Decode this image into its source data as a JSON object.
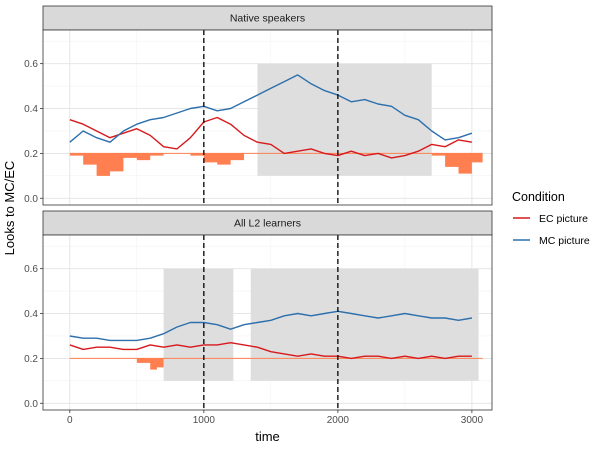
{
  "chart_data": {
    "type": "line",
    "xlabel": "time",
    "ylabel": "Looks to MC/EC",
    "xlim": [
      -200,
      3150
    ],
    "ylim": [
      -0.03,
      0.75
    ],
    "x_ticks": [
      0,
      1000,
      2000,
      3000
    ],
    "x_tick_labels": [
      "0",
      "1000",
      "2000",
      "3000"
    ],
    "y_ticks": [
      0.0,
      0.2,
      0.4,
      0.6
    ],
    "y_tick_labels": [
      "0.0",
      "0.2",
      "0.4",
      "0.6"
    ],
    "grid": true,
    "legend": {
      "title": "Condition",
      "position": "right",
      "items": [
        {
          "label": "EC picture",
          "color": "#d7191c"
        },
        {
          "label": "MC picture",
          "color": "#2c6fad"
        }
      ]
    },
    "colors": {
      "ec": "#d7191c",
      "mc": "#2c6fad",
      "baseline": "#ff7f50",
      "diff_fill": "#ff7f50",
      "cluster_fill": "#dedede",
      "strip_fill": "#d9d9d9",
      "vline": "#000000"
    },
    "baseline_y": 0.2,
    "vlines": [
      1000,
      2000
    ],
    "panels": [
      {
        "title": "Native speakers",
        "clusters": [
          {
            "x0": 1400,
            "x1": 2700,
            "y0": 0.1,
            "y1": 0.6
          }
        ],
        "series": [
          {
            "name": "EC picture",
            "x": [
              0,
              100,
              200,
              300,
              400,
              500,
              600,
              700,
              800,
              900,
              1000,
              1100,
              1200,
              1300,
              1400,
              1500,
              1600,
              1700,
              1800,
              1900,
              2000,
              2100,
              2200,
              2300,
              2400,
              2500,
              2600,
              2700,
              2800,
              2900,
              3000
            ],
            "values": [
              0.35,
              0.33,
              0.3,
              0.27,
              0.29,
              0.31,
              0.28,
              0.23,
              0.22,
              0.27,
              0.34,
              0.36,
              0.33,
              0.28,
              0.25,
              0.24,
              0.2,
              0.21,
              0.22,
              0.2,
              0.19,
              0.21,
              0.19,
              0.2,
              0.18,
              0.19,
              0.21,
              0.24,
              0.23,
              0.26,
              0.25
            ]
          },
          {
            "name": "MC picture",
            "x": [
              0,
              100,
              200,
              300,
              400,
              500,
              600,
              700,
              800,
              900,
              1000,
              1100,
              1200,
              1300,
              1400,
              1500,
              1600,
              1700,
              1800,
              1900,
              2000,
              2100,
              2200,
              2300,
              2400,
              2500,
              2600,
              2700,
              2800,
              2900,
              3000
            ],
            "values": [
              0.25,
              0.3,
              0.27,
              0.25,
              0.3,
              0.33,
              0.35,
              0.36,
              0.38,
              0.4,
              0.41,
              0.39,
              0.4,
              0.43,
              0.46,
              0.49,
              0.52,
              0.55,
              0.51,
              0.48,
              0.46,
              0.43,
              0.44,
              0.42,
              0.41,
              0.37,
              0.35,
              0.3,
              0.26,
              0.27,
              0.29
            ]
          }
        ],
        "difference": {
          "x": [
            0,
            100,
            200,
            300,
            400,
            500,
            600,
            700,
            800,
            900,
            1000,
            1100,
            1200,
            1300,
            1400,
            1500,
            1600,
            1700,
            1800,
            1900,
            2000,
            2100,
            2200,
            2300,
            2400,
            2500,
            2600,
            2700,
            2800,
            2900,
            3000
          ],
          "values": [
            0.19,
            0.15,
            0.1,
            0.12,
            0.18,
            0.17,
            0.19,
            0.2,
            0.2,
            0.19,
            0.16,
            0.15,
            0.17,
            0.2,
            0.2,
            0.2,
            0.2,
            0.2,
            0.2,
            0.2,
            0.2,
            0.2,
            0.2,
            0.2,
            0.2,
            0.2,
            0.2,
            0.19,
            0.14,
            0.11,
            0.16
          ]
        }
      },
      {
        "title": "All L2 learners",
        "clusters": [
          {
            "x0": 700,
            "x1": 1220,
            "y0": 0.1,
            "y1": 0.6
          },
          {
            "x0": 1350,
            "x1": 3050,
            "y0": 0.1,
            "y1": 0.6
          }
        ],
        "series": [
          {
            "name": "EC picture",
            "x": [
              0,
              100,
              200,
              300,
              400,
              500,
              600,
              700,
              800,
              900,
              1000,
              1100,
              1200,
              1300,
              1400,
              1500,
              1600,
              1700,
              1800,
              1900,
              2000,
              2100,
              2200,
              2300,
              2400,
              2500,
              2600,
              2700,
              2800,
              2900,
              3000
            ],
            "values": [
              0.26,
              0.24,
              0.25,
              0.25,
              0.24,
              0.24,
              0.26,
              0.25,
              0.26,
              0.25,
              0.26,
              0.26,
              0.27,
              0.26,
              0.25,
              0.23,
              0.22,
              0.21,
              0.22,
              0.21,
              0.21,
              0.2,
              0.21,
              0.21,
              0.2,
              0.21,
              0.2,
              0.21,
              0.2,
              0.21,
              0.21
            ]
          },
          {
            "name": "MC picture",
            "x": [
              0,
              100,
              200,
              300,
              400,
              500,
              600,
              700,
              800,
              900,
              1000,
              1100,
              1200,
              1300,
              1400,
              1500,
              1600,
              1700,
              1800,
              1900,
              2000,
              2100,
              2200,
              2300,
              2400,
              2500,
              2600,
              2700,
              2800,
              2900,
              3000
            ],
            "values": [
              0.3,
              0.29,
              0.29,
              0.28,
              0.28,
              0.28,
              0.29,
              0.31,
              0.34,
              0.36,
              0.36,
              0.35,
              0.33,
              0.35,
              0.36,
              0.37,
              0.39,
              0.4,
              0.39,
              0.4,
              0.41,
              0.4,
              0.39,
              0.38,
              0.39,
              0.4,
              0.39,
              0.38,
              0.38,
              0.37,
              0.38
            ]
          }
        ],
        "difference": {
          "x": [
            0,
            100,
            200,
            300,
            400,
            500,
            600,
            650,
            700,
            800,
            900,
            1000,
            1100,
            1200,
            1300,
            1400,
            1500,
            1600,
            1700,
            1800,
            1900,
            2000,
            2100,
            2200,
            2300,
            2400,
            2500,
            2600,
            2700,
            2800,
            2900,
            3000
          ],
          "values": [
            0.2,
            0.2,
            0.2,
            0.2,
            0.2,
            0.18,
            0.15,
            0.16,
            0.2,
            0.2,
            0.2,
            0.2,
            0.2,
            0.2,
            0.2,
            0.2,
            0.2,
            0.2,
            0.2,
            0.2,
            0.2,
            0.2,
            0.2,
            0.2,
            0.2,
            0.2,
            0.2,
            0.2,
            0.2,
            0.2,
            0.2,
            0.2
          ]
        }
      }
    ]
  }
}
